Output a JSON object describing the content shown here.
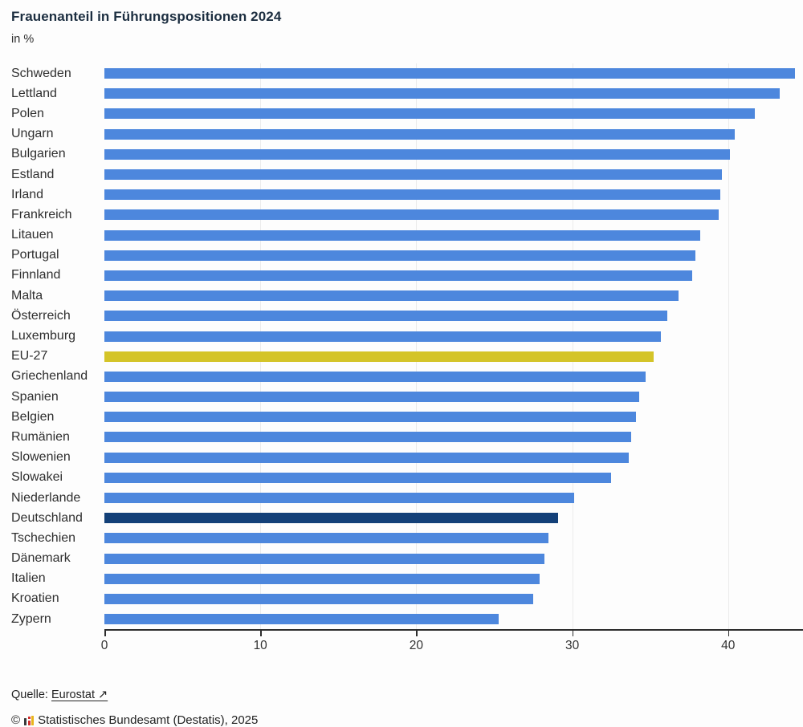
{
  "header": {
    "title": "Frauenanteil in Führungspositionen 2024",
    "subtitle": "in %"
  },
  "chart_data": {
    "type": "bar",
    "orientation": "horizontal",
    "title": "Frauenanteil in Führungspositionen 2024",
    "unit_label": "in %",
    "categories": [
      "Schweden",
      "Lettland",
      "Polen",
      "Ungarn",
      "Bulgarien",
      "Estland",
      "Irland",
      "Frankreich",
      "Litauen",
      "Portugal",
      "Finnland",
      "Malta",
      "Österreich",
      "Luxemburg",
      "EU-27",
      "Griechenland",
      "Spanien",
      "Belgien",
      "Rumänien",
      "Slowenien",
      "Slowakei",
      "Niederlande",
      "Deutschland",
      "Tschechien",
      "Dänemark",
      "Italien",
      "Kroatien",
      "Zypern"
    ],
    "values": [
      44.3,
      43.3,
      41.7,
      40.4,
      40.1,
      39.6,
      39.5,
      39.4,
      38.2,
      37.9,
      37.7,
      36.8,
      36.1,
      35.7,
      35.2,
      34.7,
      34.3,
      34.1,
      33.8,
      33.6,
      32.5,
      30.1,
      29.1,
      28.5,
      28.2,
      27.9,
      27.5,
      25.3
    ],
    "xlim": [
      0,
      44.8
    ],
    "x_ticks": [
      0,
      10,
      20,
      30,
      40
    ],
    "grid": "vertical-light",
    "legend": "none",
    "colors": {
      "default": "#4d87dd",
      "highlight_eu": "#d4c428",
      "highlight_de": "#134078"
    },
    "highlighted": {
      "EU-27": "highlight_eu",
      "Deutschland": "highlight_de"
    }
  },
  "footer": {
    "source_label": "Quelle:",
    "source_link": "Eurostat ↗",
    "copyright_symbol": "©",
    "copyright_text": "Statistisches Bundesamt (Destatis), 2025"
  }
}
